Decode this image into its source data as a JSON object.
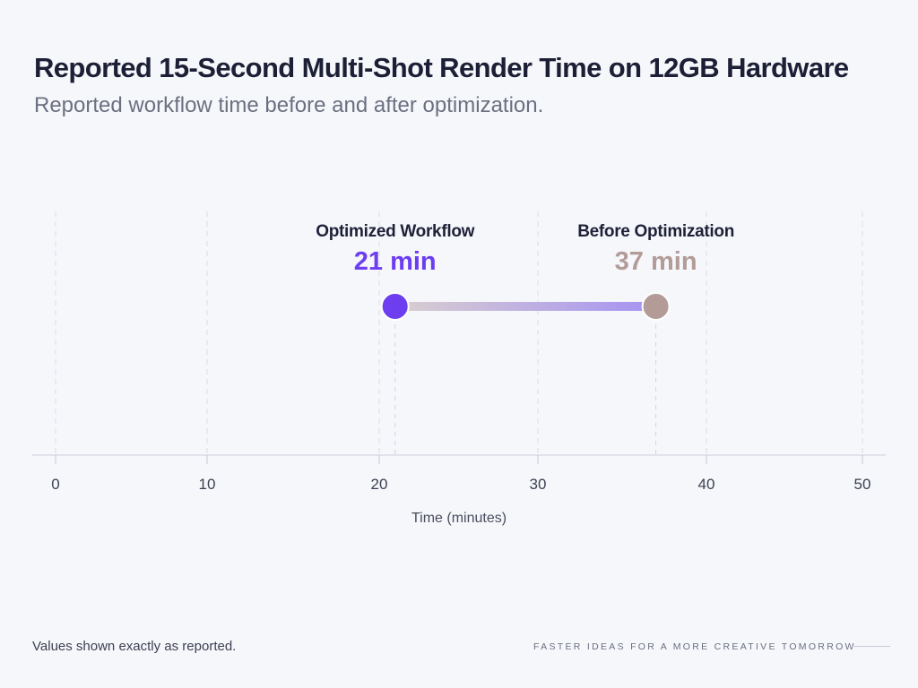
{
  "header": {
    "title": "Reported 15-Second Multi-Shot Render Time on 12GB Hardware",
    "subtitle": "Reported workflow time before and after optimization."
  },
  "chart_data": {
    "type": "dumbbell",
    "xlabel": "Time (minutes)",
    "xlim": [
      0,
      50
    ],
    "x_ticks": [
      0,
      10,
      20,
      30,
      40,
      50
    ],
    "grid": true,
    "points": [
      {
        "label": "Before Optimization",
        "value": 37,
        "value_label": "37 min",
        "color": "#b39b98"
      },
      {
        "label": "Optimized Workflow",
        "value": 21,
        "value_label": "21 min",
        "color": "#6d3df0"
      }
    ]
  },
  "footer": {
    "note": "Values shown exactly as reported.",
    "tagline": "FASTER IDEAS FOR A MORE CREATIVE TOMORROW"
  }
}
